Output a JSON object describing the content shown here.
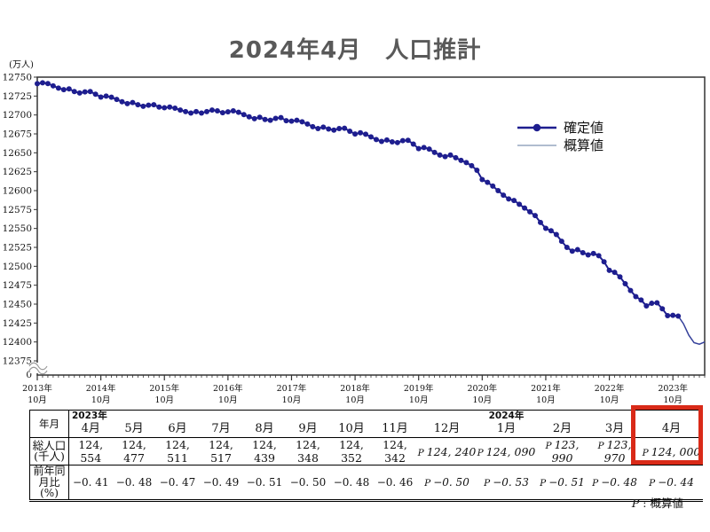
{
  "title": "2024年4月　人口推計",
  "chart": {
    "y_axis_label": "(万人)",
    "y_ticks": [
      12750,
      12725,
      12700,
      12675,
      12650,
      12625,
      12600,
      12575,
      12550,
      12525,
      12500,
      12475,
      12450,
      12425,
      12400,
      12375
    ],
    "y_zero_label": "0",
    "x_ticks": [
      {
        "year": "2013年",
        "month": "10月"
      },
      {
        "year": "2014年",
        "month": "10月"
      },
      {
        "year": "2015年",
        "month": "10月"
      },
      {
        "year": "2016年",
        "month": "10月"
      },
      {
        "year": "2017年",
        "month": "10月"
      },
      {
        "year": "2018年",
        "month": "10月"
      },
      {
        "year": "2019年",
        "month": "10月"
      },
      {
        "year": "2020年",
        "month": "10月"
      },
      {
        "year": "2021年",
        "month": "10月"
      },
      {
        "year": "2022年",
        "month": "10月"
      },
      {
        "year": "2023年",
        "month": "10月"
      }
    ],
    "legend": [
      {
        "label": "確定値",
        "type": "confirmed"
      },
      {
        "label": "概算値",
        "type": "preliminary"
      }
    ],
    "colors": {
      "confirmed": "#1e1e8f",
      "preliminary": "#8193b2",
      "axis": "#333333",
      "break": "#999999"
    }
  },
  "chart_data": {
    "type": "line",
    "title": "2024年4月 人口推計",
    "ylabel": "(万人)",
    "unit": "万人",
    "x_start": "2013-10",
    "x_end": "2024-04",
    "x_step": "1 month",
    "ylim_display": [
      12375,
      12750
    ],
    "axis_break_to_zero": true,
    "series": [
      {
        "name": "確定値",
        "style": "thick line with circle markers",
        "start": "2013-10",
        "values": [
          12741.4,
          12742.5,
          12741.5,
          12738.5,
          12735.5,
          12733.5,
          12734.5,
          12731,
          12729,
          12730.5,
          12731,
          12727.5,
          12723.7,
          12725,
          12723.5,
          12720.5,
          12717.5,
          12715,
          12716.5,
          12713.5,
          12711.5,
          12713,
          12713.5,
          12710.5,
          12709.5,
          12710.5,
          12709,
          12706.5,
          12704.5,
          12702.5,
          12704.5,
          12702.5,
          12704.5,
          12706.5,
          12705.5,
          12703,
          12704.2,
          12705.5,
          12703.5,
          12700.5,
          12697.5,
          12695,
          12697,
          12694,
          12693,
          12695.5,
          12696.5,
          12692.5,
          12691.9,
          12693,
          12691,
          12688,
          12684.5,
          12682,
          12684,
          12681.5,
          12680,
          12682,
          12682.5,
          12678.5,
          12674.9,
          12676.5,
          12674.5,
          12671,
          12667.5,
          12665,
          12667,
          12664.5,
          12663.5,
          12666,
          12666.5,
          12661.5,
          12655.5,
          12657,
          12655,
          12650.5,
          12647,
          12645,
          12647,
          12643.5,
          12640,
          12637,
          12633,
          12627,
          12614.6,
          12611,
          12606,
          12600,
          12594,
          12589,
          12587,
          12582,
          12577,
          12572,
          12567,
          12558,
          12550.2,
          12547,
          12542,
          12533,
          12525,
          12520,
          12522,
          12518,
          12515,
          12517,
          12514,
          12506,
          12494.7,
          12492,
          12486,
          12477,
          12468,
          12460,
          12455.4,
          12447.7,
          12451.1,
          12451.7,
          12443.9,
          12434.8,
          12435.2,
          12434.2
        ]
      },
      {
        "name": "概算値",
        "style": "thin line",
        "start": "2023-11",
        "values": [
          12434.2,
          12424,
          12409,
          12399,
          12397,
          12400
        ]
      }
    ]
  },
  "table": {
    "row_headers": {
      "ym": "年月",
      "pop_line1": "総人口",
      "pop_line2": "(千人)",
      "yoy_line1": "前年同",
      "yoy_line2": "月比(%)"
    },
    "columns": [
      {
        "month": "4月",
        "year": "2023年",
        "pop": "124, 554",
        "yoy": "−0. 41",
        "p": false,
        "highlighted": false
      },
      {
        "month": "5月",
        "pop": "124, 477",
        "yoy": "−0. 48",
        "p": false,
        "highlighted": false
      },
      {
        "month": "6月",
        "pop": "124, 511",
        "yoy": "−0. 47",
        "p": false,
        "highlighted": false
      },
      {
        "month": "7月",
        "pop": "124, 517",
        "yoy": "−0. 49",
        "p": false,
        "highlighted": false
      },
      {
        "month": "8月",
        "pop": "124, 439",
        "yoy": "−0. 51",
        "p": false,
        "highlighted": false
      },
      {
        "month": "9月",
        "pop": "124, 348",
        "yoy": "−0. 50",
        "p": false,
        "highlighted": false
      },
      {
        "month": "10月",
        "pop": "124, 352",
        "yoy": "−0. 48",
        "p": false,
        "highlighted": false
      },
      {
        "month": "11月",
        "pop": "124, 342",
        "yoy": "−0. 46",
        "p": false,
        "highlighted": false
      },
      {
        "month": "12月",
        "pop": "124, 240",
        "yoy": "−0. 50",
        "p": true,
        "highlighted": false
      },
      {
        "month": "1月",
        "year": "2024年",
        "pop": "124, 090",
        "yoy": "−0. 53",
        "p": true,
        "highlighted": false
      },
      {
        "month": "2月",
        "pop": "123, 990",
        "yoy": "−0. 51",
        "p": true,
        "highlighted": false
      },
      {
        "month": "3月",
        "pop": "123, 970",
        "yoy": "−0. 48",
        "p": true,
        "highlighted": false
      },
      {
        "month": "4月",
        "pop": "124, 000",
        "yoy": "−0. 44",
        "p": true,
        "highlighted": true
      }
    ],
    "p_prefix": "P"
  },
  "footnote": {
    "p": "P",
    "rest": " : 概算値"
  },
  "highlight_color": "#d92a18"
}
